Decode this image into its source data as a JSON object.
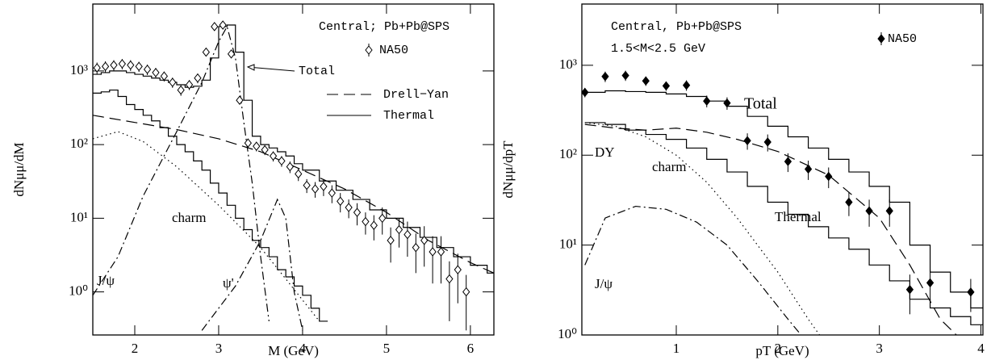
{
  "chart_data": [
    {
      "type": "line",
      "log_y": true,
      "text": [
        "Central; Pb+Pb@SPS"
      ],
      "xlabel": "M (GeV)",
      "ylabel": "dNμμ/dM",
      "xlim": [
        1.5,
        6.28
      ],
      "ylim": [
        0.26,
        8100
      ],
      "xticks": [
        2,
        3,
        4,
        5,
        6
      ],
      "yticks": [
        {
          "value": 1,
          "label": "10⁰"
        },
        {
          "value": 10,
          "label": "10¹"
        },
        {
          "value": 100,
          "label": "10²"
        },
        {
          "value": 1000,
          "label": "10³"
        }
      ],
      "series": [
        {
          "name": "Total",
          "color": "#000000",
          "style": "step",
          "x": [
            1.5,
            1.6,
            1.7,
            1.8,
            1.9,
            2.0,
            2.1,
            2.2,
            2.3,
            2.4,
            2.5,
            2.6,
            2.7,
            2.8,
            2.9,
            3.0,
            3.1,
            3.2,
            3.3,
            3.4,
            3.5,
            3.6,
            3.7,
            3.8,
            3.9,
            4.0,
            4.2,
            4.4,
            4.6,
            4.8,
            5.0,
            5.2,
            5.4,
            5.6,
            5.8,
            6.0,
            6.2
          ],
          "values": [
            900,
            950,
            1000,
            1000,
            950,
            900,
            850,
            800,
            750,
            700,
            650,
            600,
            620,
            750,
            1500,
            4000,
            4200,
            1800,
            400,
            130,
            100,
            90,
            80,
            70,
            55,
            45,
            32,
            24,
            18,
            13,
            10,
            7.5,
            5.5,
            4,
            3,
            2.3,
            1.8
          ]
        },
        {
          "name": "Drell−Yan",
          "color": "#000000",
          "style": "dashed",
          "x": [
            1.5,
            2.0,
            2.5,
            3.0,
            3.5,
            4.0,
            4.5,
            5.0,
            5.5,
            6.0,
            6.28
          ],
          "values": [
            250,
            200,
            160,
            120,
            80,
            45,
            25,
            12,
            5,
            2.5,
            1.8
          ]
        },
        {
          "name": "Thermal",
          "color": "#000000",
          "style": "step",
          "x": [
            1.5,
            1.6,
            1.7,
            1.8,
            1.9,
            2.0,
            2.1,
            2.2,
            2.3,
            2.4,
            2.5,
            2.6,
            2.7,
            2.8,
            2.9,
            3.0,
            3.1,
            3.2,
            3.3,
            3.4,
            3.5,
            3.6,
            3.7,
            3.8,
            3.9,
            4.0,
            4.1,
            4.2
          ],
          "values": [
            500,
            520,
            550,
            450,
            350,
            300,
            250,
            210,
            170,
            130,
            100,
            80,
            60,
            45,
            30,
            22,
            15,
            10,
            7,
            5,
            4,
            3,
            2,
            1.6,
            1.2,
            0.9,
            0.6,
            0.4
          ]
        },
        {
          "name": "charm",
          "color": "#000000",
          "style": "dotted",
          "x": [
            1.5,
            1.8,
            2.1,
            2.5,
            3.0,
            3.5,
            3.8,
            4.2
          ],
          "values": [
            120,
            150,
            110,
            50,
            15,
            4,
            1.5,
            0.4
          ]
        },
        {
          "name": "J/ψ",
          "color": "#000000",
          "style": "dashdot",
          "x": [
            1.5,
            1.8,
            2.1,
            2.5,
            2.8,
            3.0,
            3.1,
            3.2,
            3.3,
            3.4,
            3.5,
            3.6
          ],
          "values": [
            0.9,
            3,
            20,
            150,
            700,
            2500,
            4000,
            1500,
            200,
            30,
            3,
            0.4
          ]
        },
        {
          "name": "ψ'",
          "color": "#000000",
          "style": "dashdot",
          "x": [
            2.8,
            3.2,
            3.5,
            3.7,
            3.8,
            3.9,
            4.0
          ],
          "values": [
            0.3,
            1.2,
            5,
            18,
            10,
            1,
            0.3
          ]
        },
        {
          "name": "NA50",
          "color": "#000000",
          "style": "points",
          "marker_fill": "#ffffff",
          "x": [
            1.55,
            1.65,
            1.75,
            1.85,
            1.95,
            2.05,
            2.15,
            2.25,
            2.35,
            2.45,
            2.55,
            2.65,
            2.75,
            2.85,
            2.95,
            3.05,
            3.15,
            3.25,
            3.35,
            3.45,
            3.55,
            3.65,
            3.75,
            3.85,
            3.95,
            4.05,
            4.15,
            4.25,
            4.35,
            4.45,
            4.55,
            4.65,
            4.75,
            4.85,
            4.95,
            5.05,
            5.15,
            5.25,
            5.35,
            5.45,
            5.55,
            5.65,
            5.75,
            5.85,
            5.95
          ],
          "values": [
            1100,
            1150,
            1200,
            1250,
            1200,
            1150,
            1050,
            950,
            850,
            700,
            550,
            650,
            800,
            1800,
            4000,
            4200,
            1700,
            400,
            105,
            95,
            85,
            70,
            60,
            50,
            40,
            28,
            25,
            27,
            22,
            17,
            14,
            12,
            9,
            8,
            10,
            5,
            7,
            6,
            4,
            5,
            3.5,
            3.5,
            1.5,
            2,
            1
          ],
          "errors": [
            200,
            200,
            200,
            200,
            200,
            180,
            170,
            150,
            130,
            110,
            90,
            100,
            120,
            200,
            400,
            400,
            200,
            40,
            15,
            14,
            13,
            11,
            10,
            9,
            8,
            6,
            6,
            7,
            6,
            5,
            4,
            4,
            3,
            3,
            4,
            2.5,
            3,
            3,
            2.2,
            2.8,
            2.2,
            2.2,
            1.1,
            1.3,
            0.7
          ]
        }
      ]
    },
    {
      "type": "line",
      "log_y": true,
      "text": [
        "Central, Pb+Pb@SPS",
        "1.5<M<2.5 GeV"
      ],
      "xlabel": "pT (GeV)",
      "ylabel": "dNμμ/dpT",
      "xlim": [
        0.07,
        4.02
      ],
      "ylim": [
        1,
        4800
      ],
      "xticks": [
        1,
        2,
        3,
        4
      ],
      "yticks": [
        {
          "value": 1,
          "label": "10⁰"
        },
        {
          "value": 10,
          "label": "10¹"
        },
        {
          "value": 100,
          "label": "10²"
        },
        {
          "value": 1000,
          "label": "10³"
        }
      ],
      "series": [
        {
          "name": "Total",
          "color": "#000000",
          "style": "step",
          "x": [
            0.1,
            0.3,
            0.5,
            0.7,
            0.9,
            1.1,
            1.3,
            1.5,
            1.7,
            1.9,
            2.1,
            2.3,
            2.5,
            2.7,
            2.9,
            3.1,
            3.3,
            3.5,
            3.7,
            3.9
          ],
          "values": [
            500,
            520,
            510,
            500,
            480,
            450,
            400,
            350,
            270,
            210,
            160,
            120,
            90,
            65,
            45,
            30,
            10,
            5,
            3,
            2
          ]
        },
        {
          "name": "DY",
          "color": "#000000",
          "style": "dashed",
          "x": [
            0.1,
            0.4,
            0.7,
            1.0,
            1.3,
            1.6,
            2.0,
            2.5,
            3.0,
            3.3,
            3.6,
            3.8
          ],
          "values": [
            220,
            200,
            190,
            200,
            180,
            150,
            110,
            60,
            20,
            6,
            1.5,
            0.9
          ]
        },
        {
          "name": "charm",
          "color": "#000000",
          "style": "dotted",
          "x": [
            0.1,
            0.4,
            0.7,
            1.0,
            1.3,
            1.6,
            2.0,
            2.3,
            2.6
          ],
          "values": [
            230,
            210,
            160,
            100,
            50,
            20,
            5,
            1.5,
            0.5
          ]
        },
        {
          "name": "Thermal",
          "color": "#000000",
          "style": "step",
          "x": [
            0.1,
            0.3,
            0.5,
            0.7,
            0.9,
            1.1,
            1.3,
            1.5,
            1.7,
            1.9,
            2.1,
            2.3,
            2.5,
            2.7,
            2.9,
            3.1,
            3.3,
            3.5,
            3.7,
            3.9
          ],
          "values": [
            230,
            220,
            190,
            170,
            150,
            120,
            90,
            65,
            45,
            30,
            22,
            16,
            12,
            9,
            6,
            4,
            2.5,
            2,
            1.6,
            1.3
          ]
        },
        {
          "name": "J/ψ",
          "color": "#000000",
          "style": "dashdot",
          "x": [
            0.1,
            0.3,
            0.6,
            0.9,
            1.2,
            1.5,
            1.8,
            2.1,
            2.3
          ],
          "values": [
            6,
            20,
            27,
            25,
            18,
            10,
            4,
            1.5,
            0.8
          ]
        },
        {
          "name": "NA50",
          "color": "#000000",
          "style": "points",
          "marker_fill": "#000000",
          "x": [
            0.1,
            0.3,
            0.5,
            0.7,
            0.9,
            1.1,
            1.3,
            1.5,
            1.7,
            1.9,
            2.1,
            2.3,
            2.5,
            2.7,
            2.9,
            3.1,
            3.3,
            3.5,
            3.9
          ],
          "values": [
            500,
            750,
            770,
            670,
            590,
            600,
            400,
            380,
            145,
            140,
            85,
            70,
            58,
            30,
            24,
            24,
            3.2,
            3.8,
            3
          ],
          "errors": [
            60,
            100,
            100,
            80,
            70,
            80,
            60,
            60,
            30,
            30,
            20,
            17,
            15,
            9,
            8,
            8,
            1.5,
            1.5,
            1.2
          ]
        }
      ]
    }
  ]
}
